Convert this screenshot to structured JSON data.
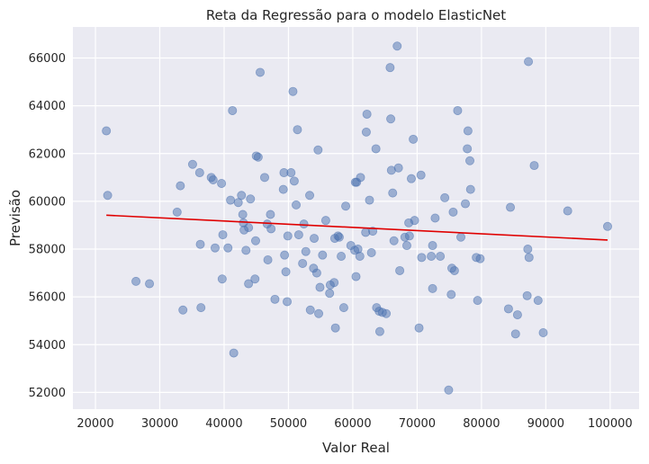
{
  "chart_data": {
    "type": "scatter",
    "title": "Reta da Regressão para o modelo ElasticNet",
    "xlabel": "Valor Real",
    "ylabel": "Previsão",
    "xlim": [
      16500,
      104500
    ],
    "ylim": [
      51300,
      67300
    ],
    "xticks": [
      20000,
      30000,
      40000,
      50000,
      60000,
      70000,
      80000,
      90000,
      100000
    ],
    "yticks": [
      52000,
      54000,
      56000,
      58000,
      60000,
      62000,
      64000,
      66000
    ],
    "grid": true,
    "colors": {
      "background": "#eaeaf2",
      "grid": "#ffffff",
      "points": "#4c72b0",
      "line": "#e00000"
    },
    "regression_line": {
      "x": [
        21700,
        99600
      ],
      "y": [
        59420,
        58380
      ]
    },
    "points": [
      [
        21700,
        62950
      ],
      [
        21900,
        60250
      ],
      [
        26300,
        56650
      ],
      [
        28400,
        56550
      ],
      [
        32700,
        59550
      ],
      [
        33200,
        60650
      ],
      [
        33600,
        55450
      ],
      [
        35100,
        61550
      ],
      [
        36200,
        61200
      ],
      [
        36300,
        58200
      ],
      [
        36400,
        55550
      ],
      [
        38000,
        61000
      ],
      [
        38300,
        60900
      ],
      [
        38600,
        58050
      ],
      [
        39600,
        60750
      ],
      [
        39700,
        56750
      ],
      [
        39800,
        58600
      ],
      [
        40600,
        58050
      ],
      [
        41000,
        60050
      ],
      [
        41300,
        63800
      ],
      [
        41500,
        53650
      ],
      [
        42200,
        59950
      ],
      [
        42700,
        60250
      ],
      [
        42900,
        59450
      ],
      [
        43000,
        59100
      ],
      [
        43100,
        58800
      ],
      [
        43400,
        57950
      ],
      [
        43800,
        58900
      ],
      [
        43800,
        56550
      ],
      [
        44100,
        60100
      ],
      [
        44800,
        56750
      ],
      [
        44900,
        58350
      ],
      [
        45000,
        61900
      ],
      [
        45300,
        61850
      ],
      [
        45600,
        65400
      ],
      [
        46300,
        61000
      ],
      [
        46700,
        59050
      ],
      [
        46800,
        57550
      ],
      [
        47200,
        59450
      ],
      [
        47300,
        58850
      ],
      [
        47900,
        55900
      ],
      [
        49200,
        60500
      ],
      [
        49300,
        61200
      ],
      [
        49400,
        57750
      ],
      [
        49600,
        57050
      ],
      [
        49800,
        55800
      ],
      [
        49900,
        58550
      ],
      [
        50400,
        61200
      ],
      [
        50700,
        64600
      ],
      [
        50900,
        60850
      ],
      [
        51200,
        59850
      ],
      [
        51400,
        63000
      ],
      [
        51600,
        58600
      ],
      [
        52200,
        57400
      ],
      [
        52400,
        59050
      ],
      [
        52700,
        57900
      ],
      [
        53300,
        60250
      ],
      [
        53400,
        55450
      ],
      [
        53900,
        57200
      ],
      [
        54000,
        58450
      ],
      [
        54400,
        57000
      ],
      [
        54600,
        62150
      ],
      [
        54700,
        55300
      ],
      [
        54900,
        56400
      ],
      [
        55300,
        57750
      ],
      [
        55800,
        59200
      ],
      [
        56400,
        56150
      ],
      [
        56500,
        56500
      ],
      [
        57100,
        56600
      ],
      [
        57200,
        58450
      ],
      [
        57300,
        54700
      ],
      [
        57700,
        58550
      ],
      [
        57900,
        58500
      ],
      [
        58200,
        57700
      ],
      [
        58600,
        55550
      ],
      [
        58900,
        59800
      ],
      [
        59700,
        58150
      ],
      [
        60300,
        57950
      ],
      [
        60400,
        60800
      ],
      [
        60500,
        56850
      ],
      [
        60600,
        60800
      ],
      [
        60800,
        58000
      ],
      [
        61100,
        57700
      ],
      [
        61200,
        61000
      ],
      [
        62000,
        58700
      ],
      [
        62100,
        62900
      ],
      [
        62200,
        63650
      ],
      [
        62600,
        60050
      ],
      [
        62900,
        57850
      ],
      [
        63100,
        58750
      ],
      [
        63600,
        62200
      ],
      [
        63700,
        55550
      ],
      [
        64100,
        55400
      ],
      [
        64200,
        54550
      ],
      [
        64600,
        55350
      ],
      [
        65200,
        55300
      ],
      [
        65800,
        65600
      ],
      [
        65900,
        63450
      ],
      [
        66000,
        61300
      ],
      [
        66200,
        60350
      ],
      [
        66400,
        58350
      ],
      [
        66900,
        66500
      ],
      [
        67100,
        61400
      ],
      [
        67300,
        57100
      ],
      [
        68100,
        58500
      ],
      [
        68400,
        58150
      ],
      [
        68700,
        59100
      ],
      [
        68800,
        58550
      ],
      [
        69100,
        60950
      ],
      [
        69400,
        62600
      ],
      [
        69600,
        59200
      ],
      [
        70300,
        54700
      ],
      [
        70600,
        61100
      ],
      [
        70700,
        57650
      ],
      [
        72200,
        57700
      ],
      [
        72400,
        58150
      ],
      [
        72400,
        56350
      ],
      [
        72800,
        59300
      ],
      [
        73600,
        57700
      ],
      [
        74300,
        60150
      ],
      [
        74900,
        52100
      ],
      [
        75300,
        56100
      ],
      [
        75400,
        57200
      ],
      [
        75600,
        59550
      ],
      [
        75800,
        57100
      ],
      [
        76300,
        63800
      ],
      [
        76800,
        58500
      ],
      [
        77500,
        59900
      ],
      [
        77800,
        62200
      ],
      [
        77900,
        62950
      ],
      [
        78200,
        61700
      ],
      [
        78300,
        60500
      ],
      [
        79200,
        57650
      ],
      [
        79400,
        55850
      ],
      [
        79800,
        57600
      ],
      [
        84200,
        55500
      ],
      [
        84500,
        59750
      ],
      [
        85300,
        54450
      ],
      [
        85600,
        55250
      ],
      [
        87100,
        56050
      ],
      [
        87200,
        58000
      ],
      [
        87300,
        65850
      ],
      [
        87400,
        57650
      ],
      [
        88200,
        61500
      ],
      [
        88800,
        55850
      ],
      [
        89600,
        54500
      ],
      [
        93400,
        59600
      ],
      [
        99600,
        58950
      ]
    ]
  }
}
